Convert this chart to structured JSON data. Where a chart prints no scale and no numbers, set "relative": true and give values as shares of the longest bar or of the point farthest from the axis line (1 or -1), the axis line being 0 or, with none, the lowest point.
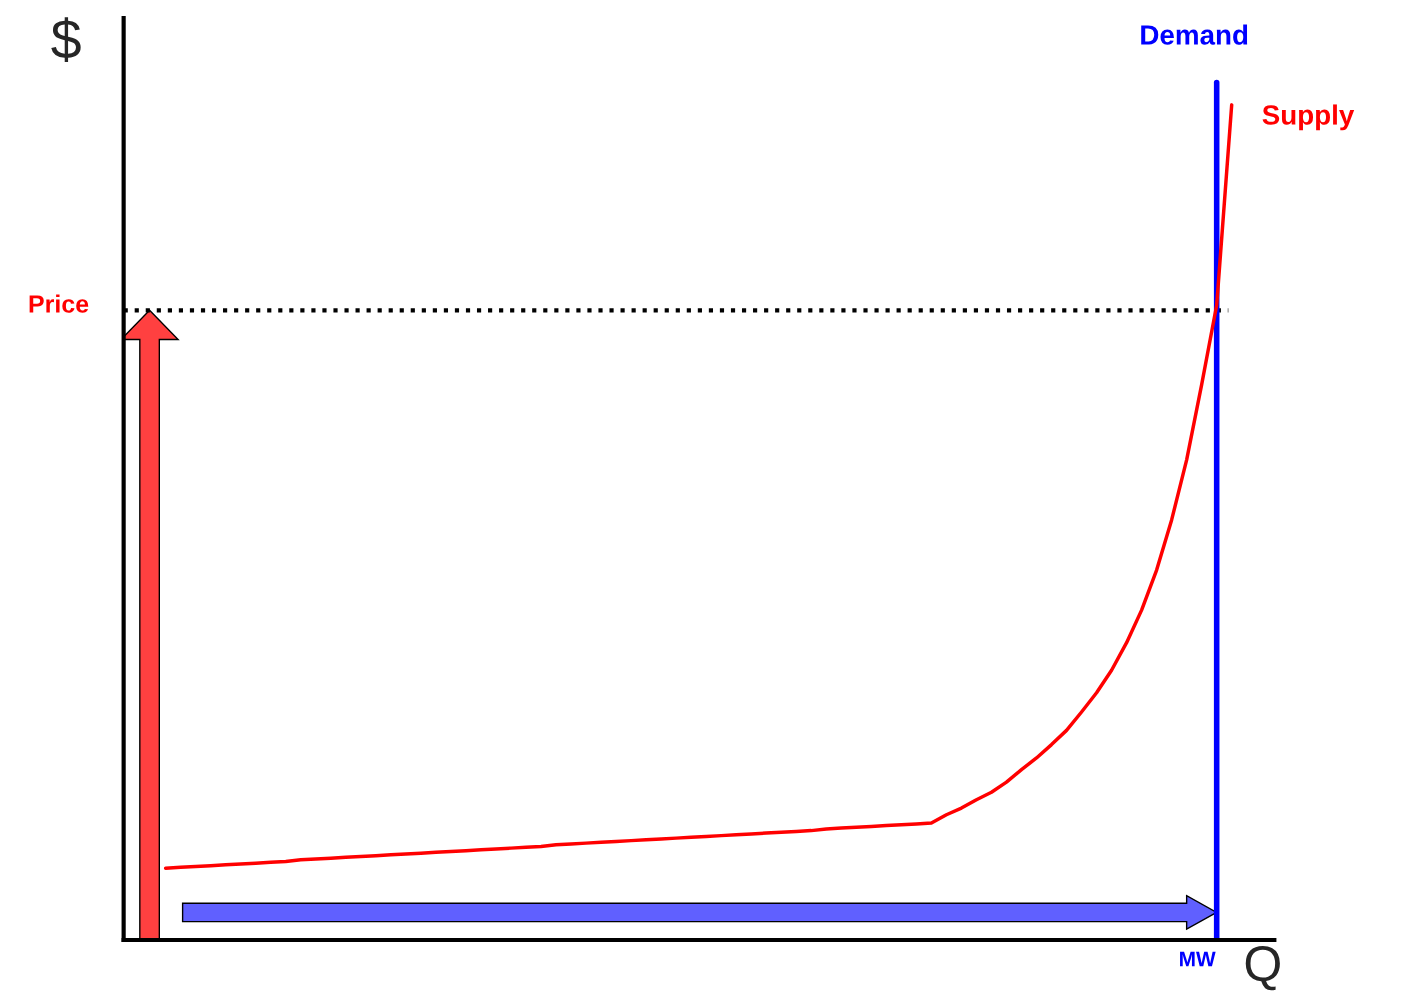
{
  "chart_data": {
    "type": "line",
    "relative": true,
    "xlabel": "Q",
    "ylabel": "$",
    "categories": [
      null,
      null,
      null,
      null,
      null,
      null,
      null,
      null,
      null,
      null,
      null,
      null,
      null,
      null,
      null,
      null,
      null,
      null,
      null,
      null,
      null,
      null,
      null,
      null,
      null,
      null,
      null,
      null,
      null,
      null,
      null,
      null,
      null,
      null,
      null,
      null,
      null,
      null,
      null,
      null,
      null,
      null,
      null,
      null,
      null,
      null,
      null,
      null,
      null,
      null,
      null,
      null,
      null,
      null,
      null,
      null,
      null,
      null,
      null,
      null,
      null,
      null,
      null,
      null,
      null,
      null,
      null,
      null,
      null,
      null,
      null,
      null
    ],
    "series": [
      {
        "name": "Supply",
        "color": "#ff0000",
        "values": [
          0.086,
          0.087,
          0.088,
          0.089,
          0.09,
          0.091,
          0.092,
          0.093,
          0.094,
          0.096,
          0.097,
          0.098,
          0.099,
          0.1,
          0.101,
          0.102,
          0.103,
          0.104,
          0.105,
          0.106,
          0.107,
          0.108,
          0.109,
          0.11,
          0.111,
          0.112,
          0.114,
          0.115,
          0.116,
          0.117,
          0.118,
          0.119,
          0.12,
          0.121,
          0.122,
          0.123,
          0.124,
          0.125,
          0.126,
          0.127,
          0.128,
          0.129,
          0.13,
          0.131,
          0.133,
          0.134,
          0.135,
          0.136,
          0.137,
          0.138,
          0.139,
          0.14,
          0.15,
          0.158,
          0.168,
          0.177,
          0.189,
          0.204,
          0.218,
          0.234,
          0.251,
          0.273,
          0.296,
          0.323,
          0.356,
          0.395,
          0.443,
          0.503,
          0.575,
          0.665,
          0.76,
          1.0
        ]
      }
    ],
    "ref_lines": [
      {
        "axis": "y",
        "value": 0.754,
        "label": "Price",
        "color": "#000000",
        "line_style": "dotted"
      }
    ],
    "annotations": [
      "Demand",
      "MW"
    ],
    "legend": false,
    "marker": "none",
    "line_style": "solid"
  }
}
